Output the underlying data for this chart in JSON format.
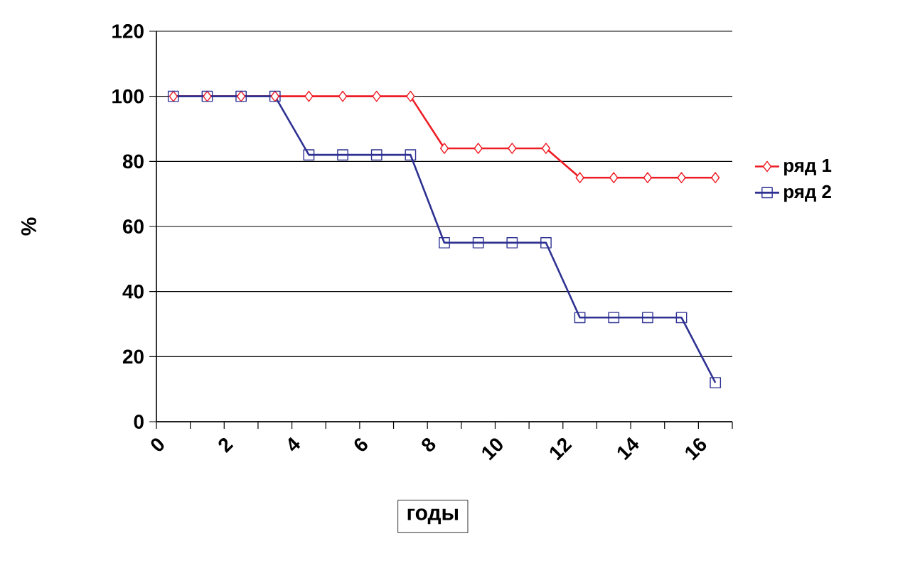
{
  "chart_data": {
    "type": "line",
    "xlabel": "годы",
    "ylabel": "%",
    "x": [
      0.5,
      1.5,
      2.5,
      3.5,
      4.5,
      5.5,
      6.5,
      7.5,
      8.5,
      9.5,
      10.5,
      11.5,
      12.5,
      13.5,
      14.5,
      15.5,
      16.5
    ],
    "series": [
      {
        "name": "ряд 1",
        "color": "#ee1c25",
        "marker": "diamond",
        "values": [
          100,
          100,
          100,
          100,
          100,
          100,
          100,
          100,
          84,
          84,
          84,
          84,
          75,
          75,
          75,
          75,
          75
        ]
      },
      {
        "name": "ряд 2",
        "color": "#2e3192",
        "marker": "square",
        "values": [
          100,
          100,
          100,
          100,
          82,
          82,
          82,
          82,
          55,
          55,
          55,
          55,
          32,
          32,
          32,
          32,
          12
        ]
      }
    ],
    "xlim": [
      0,
      17
    ],
    "xticks": [
      0,
      {
        "value": 1,
        "label": null
      },
      2,
      {
        "value": 3,
        "label": null
      },
      4,
      {
        "value": 5,
        "label": null
      },
      6,
      {
        "value": 7,
        "label": null
      },
      8,
      {
        "value": 9,
        "label": null
      },
      10,
      {
        "value": 11,
        "label": null
      },
      12,
      {
        "value": 13,
        "label": null
      },
      14,
      {
        "value": 15,
        "label": null
      },
      16,
      {
        "value": 17,
        "label": null
      }
    ],
    "ylim": [
      0,
      120
    ],
    "yticks": [
      0,
      20,
      40,
      60,
      80,
      100,
      120
    ],
    "grid": "y",
    "legend": "right",
    "line_style": "solid"
  }
}
